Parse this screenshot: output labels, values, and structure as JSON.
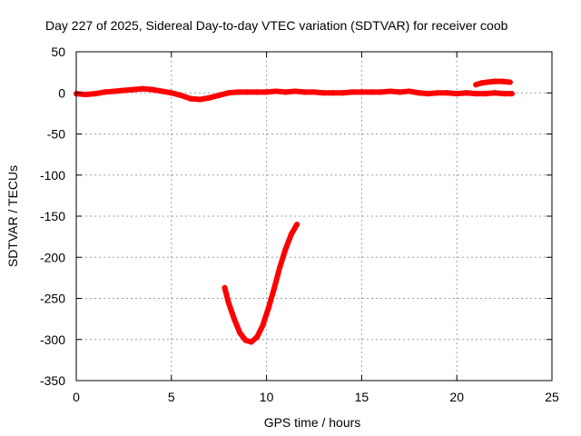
{
  "chart_data": {
    "type": "scatter",
    "title": "Day 227 of 2025, Sidereal Day-to-day VTEC variation (SDTVAR) for receiver coob",
    "xlabel": "GPS time / hours",
    "ylabel": "SDTVAR / TECUs",
    "xlim": [
      0,
      25
    ],
    "ylim": [
      -350,
      50
    ],
    "xticks": [
      0,
      5,
      10,
      15,
      20,
      25
    ],
    "yticks": [
      50,
      0,
      -50,
      -100,
      -150,
      -200,
      -250,
      -300,
      -350
    ],
    "grid": true,
    "legend": "none",
    "marker_color": "#ff0000",
    "series": [
      {
        "x": [
          0.0,
          0.5,
          1.0,
          1.5,
          2.0,
          2.5,
          3.0,
          3.5,
          4.0,
          4.5,
          5.0,
          5.5,
          6.0,
          6.5,
          7.0,
          7.5,
          8.0,
          8.5,
          9.0,
          9.5,
          10.0,
          10.5,
          11.0,
          11.5,
          12.0,
          12.5,
          13.0,
          13.5,
          14.0,
          14.5,
          15.0,
          15.5,
          16.0,
          16.5,
          17.0,
          17.5,
          18.0,
          18.5,
          19.0,
          19.5,
          20.0,
          20.5,
          21.0,
          21.5,
          22.0,
          22.5,
          22.9
        ],
        "y": [
          -1,
          -2,
          -1,
          1,
          2,
          3,
          4,
          5,
          4,
          2,
          0,
          -3,
          -7,
          -8,
          -6,
          -3,
          0,
          1,
          1,
          1,
          1,
          2,
          1,
          2,
          1,
          1,
          0,
          0,
          0,
          1,
          1,
          1,
          1,
          2,
          1,
          2,
          0,
          -1,
          0,
          0,
          -1,
          0,
          -1,
          -1,
          0,
          -1,
          -1
        ]
      },
      {
        "x": [
          21.0,
          21.3,
          21.6,
          22.0,
          22.4,
          22.8
        ],
        "y": [
          10,
          12,
          13,
          14,
          14,
          13
        ]
      },
      {
        "x": [
          7.8,
          8.0,
          8.3,
          8.6,
          8.9,
          9.2,
          9.5,
          9.8,
          10.1,
          10.4,
          10.7,
          11.0,
          11.3,
          11.6
        ],
        "y": [
          -237,
          -255,
          -275,
          -292,
          -301,
          -303,
          -297,
          -283,
          -262,
          -238,
          -212,
          -190,
          -172,
          -160
        ]
      }
    ]
  }
}
